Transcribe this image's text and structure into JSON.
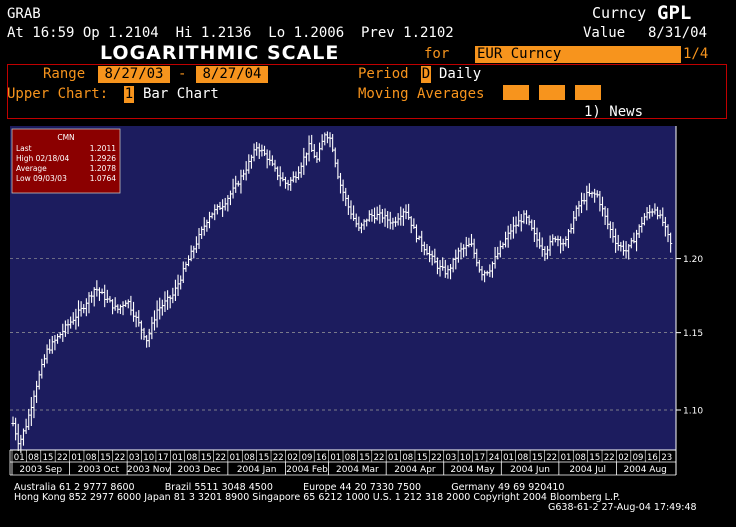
{
  "header": {
    "function": "GRAB",
    "security_type": "Curncy",
    "ticker": "GPL",
    "quote_line": "At 16:59 Op 1.2104  Hi 1.2136  Lo 1.2006  Prev 1.2102",
    "value_label": "Value",
    "value_date": "8/31/04",
    "title": "LOGARITHMIC SCALE",
    "for_label": "for",
    "security": "EUR Curncy",
    "page": "1/4"
  },
  "settings": {
    "range_label": "Range",
    "range_start": "8/27/03",
    "range_dash": "-",
    "range_end": "8/27/04",
    "period_label": "Period",
    "period_code": "D",
    "period_value": "Daily",
    "upper_chart_label": "Upper Chart:",
    "upper_chart_code": "1",
    "upper_chart_value": "Bar Chart",
    "moving_averages_label": "Moving Averages",
    "news_label": "1) News"
  },
  "legend_box": {
    "title": "CMN",
    "rows": [
      {
        "label": "Last",
        "value": "1.2011"
      },
      {
        "label": "High  02/18/04",
        "value": "1.2926"
      },
      {
        "label": "Average",
        "value": "1.2078"
      },
      {
        "label": "Low  09/03/03",
        "value": "1.0764"
      }
    ]
  },
  "colors": {
    "plot_bg": "#1c1c5e",
    "bars": "#ffffff",
    "grid": "#9a9a9a",
    "accent": "#f7941d",
    "legend_bg": "#8b0000",
    "panel_border": "#c00000"
  },
  "footer": {
    "line1": "Australia 61 2 9777 8600          Brazil 5511 3048 4500          Europe 44 20 7330 7500          Germany 49 69 920410",
    "line2": "Hong Kong 852 2977 6000 Japan 81 3 3201 8900 Singapore 65 6212 1000 U.S. 1 212 318 2000 Copyright 2004 Bloomberg L.P.",
    "line3": "G638-61-2 27-Aug-04 17:49:48"
  },
  "chart_data": {
    "type": "bar",
    "subtype": "daily OHLC bars",
    "scale": "log",
    "y_ticks": [
      1.1,
      1.15,
      1.2
    ],
    "y_tick_labels": [
      "1.10",
      "1.15",
      "1.20"
    ],
    "ylim": [
      1.075,
      1.295
    ],
    "grid": "dashed horizontal at ticks",
    "day_labels": [
      "01",
      "08",
      "15",
      "22",
      "01",
      "08",
      "15",
      "22",
      "03",
      "10",
      "17",
      "01",
      "08",
      "15",
      "22",
      "01",
      "08",
      "15",
      "22",
      "02",
      "09",
      "16",
      "01",
      "08",
      "15",
      "22",
      "01",
      "08",
      "15",
      "22",
      "03",
      "10",
      "17",
      "24",
      "01",
      "08",
      "15",
      "22",
      "01",
      "08",
      "15",
      "22",
      "02",
      "09",
      "16",
      "23"
    ],
    "months": [
      {
        "label": "2003 Sep",
        "days": 4
      },
      {
        "label": "2003 Oct",
        "days": 4
      },
      {
        "label": "2003 Nov",
        "days": 3
      },
      {
        "label": "2003 Dec",
        "days": 4
      },
      {
        "label": "2004 Jan",
        "days": 4
      },
      {
        "label": "2004 Feb",
        "days": 3
      },
      {
        "label": "2004 Mar",
        "days": 4
      },
      {
        "label": "2004 Apr",
        "days": 4
      },
      {
        "label": "2004 May",
        "days": 4
      },
      {
        "label": "2004 Jun",
        "days": 4
      },
      {
        "label": "2004 Jul",
        "days": 4
      },
      {
        "label": "2004 Aug",
        "days": 4
      }
    ],
    "series": [
      {
        "kind": "daily_close_trajectory",
        "points": [
          [
            0,
            1.0915
          ],
          [
            6,
            1.079
          ],
          [
            14,
            1.092
          ],
          [
            22,
            1.113
          ],
          [
            34,
            1.138
          ],
          [
            52,
            1.153
          ],
          [
            68,
            1.165
          ],
          [
            82,
            1.18
          ],
          [
            94,
            1.172
          ],
          [
            104,
            1.165
          ],
          [
            114,
            1.172
          ],
          [
            124,
            1.158
          ],
          [
            134,
            1.145
          ],
          [
            144,
            1.165
          ],
          [
            160,
            1.175
          ],
          [
            176,
            1.2
          ],
          [
            196,
            1.23
          ],
          [
            210,
            1.238
          ],
          [
            222,
            1.25
          ],
          [
            234,
            1.265
          ],
          [
            244,
            1.28
          ],
          [
            254,
            1.272
          ],
          [
            264,
            1.26
          ],
          [
            274,
            1.252
          ],
          [
            284,
            1.26
          ],
          [
            296,
            1.28
          ],
          [
            304,
            1.27
          ],
          [
            312,
            1.29
          ],
          [
            318,
            1.285
          ],
          [
            326,
            1.255
          ],
          [
            336,
            1.235
          ],
          [
            346,
            1.22
          ],
          [
            356,
            1.23
          ],
          [
            368,
            1.23
          ],
          [
            380,
            1.225
          ],
          [
            392,
            1.235
          ],
          [
            404,
            1.215
          ],
          [
            414,
            1.205
          ],
          [
            424,
            1.195
          ],
          [
            434,
            1.19
          ],
          [
            446,
            1.205
          ],
          [
            458,
            1.21
          ],
          [
            468,
            1.19
          ],
          [
            476,
            1.192
          ],
          [
            486,
            1.205
          ],
          [
            498,
            1.22
          ],
          [
            512,
            1.23
          ],
          [
            522,
            1.215
          ],
          [
            532,
            1.205
          ],
          [
            542,
            1.215
          ],
          [
            552,
            1.21
          ],
          [
            564,
            1.235
          ],
          [
            574,
            1.245
          ],
          [
            584,
            1.245
          ],
          [
            594,
            1.225
          ],
          [
            604,
            1.21
          ],
          [
            614,
            1.205
          ],
          [
            622,
            1.215
          ],
          [
            632,
            1.23
          ],
          [
            642,
            1.235
          ],
          [
            650,
            1.225
          ],
          [
            660,
            1.205
          ]
        ]
      }
    ]
  }
}
